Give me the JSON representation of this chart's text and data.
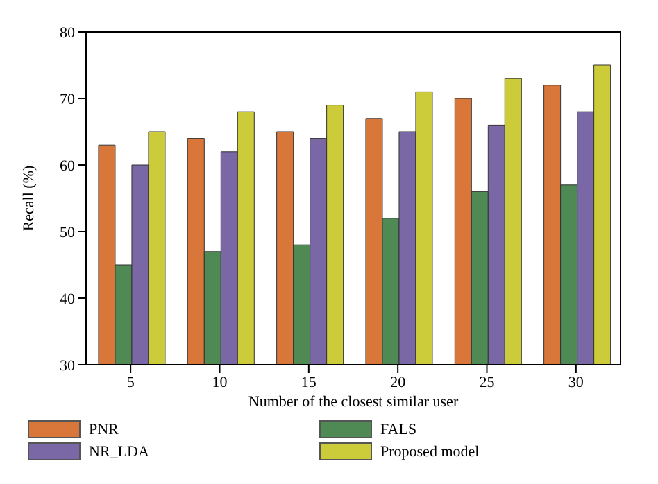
{
  "chart_data": {
    "type": "bar",
    "xlabel": "Number of the closest similar user",
    "ylabel": "Recall (%)",
    "categories": [
      "5",
      "10",
      "15",
      "20",
      "25",
      "30"
    ],
    "series": [
      {
        "name": "PNR",
        "color": "#d9773a",
        "values": [
          63,
          64,
          65,
          67,
          70,
          72
        ]
      },
      {
        "name": "FALS",
        "color": "#4f8a55",
        "values": [
          45,
          47,
          48,
          52,
          56,
          57
        ]
      },
      {
        "name": "NR_LDA",
        "color": "#7a68a6",
        "values": [
          60,
          62,
          64,
          65,
          66,
          68
        ]
      },
      {
        "name": "Proposed model",
        "color": "#cccc3a",
        "values": [
          65,
          68,
          69,
          71,
          73,
          75
        ]
      }
    ],
    "ylim": [
      30,
      80
    ],
    "yticks": [
      30,
      40,
      50,
      60,
      70,
      80
    ],
    "grid": false,
    "legend": "bottom"
  }
}
